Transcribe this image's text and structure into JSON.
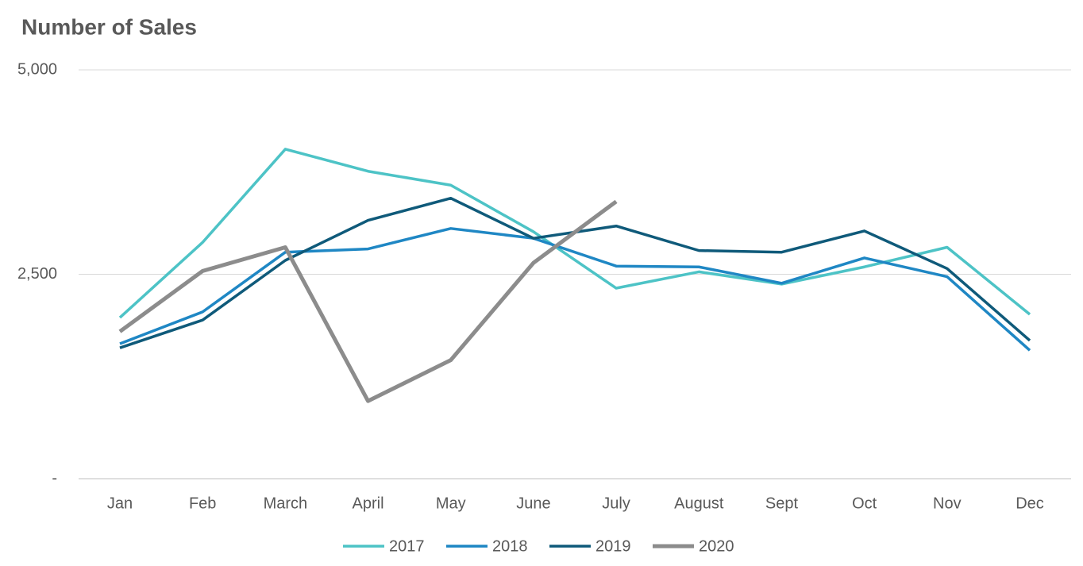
{
  "chart_data": {
    "type": "line",
    "title": "Number of Sales",
    "categories": [
      "Jan",
      "Feb",
      "March",
      "April",
      "May",
      "June",
      "July",
      "August",
      "Sept",
      "Oct",
      "Nov",
      "Dec"
    ],
    "series": [
      {
        "name": "2017",
        "color": "#4dc3c6",
        "values": [
          1970,
          2890,
          4030,
          3760,
          3590,
          3020,
          2330,
          2530,
          2380,
          2590,
          2830,
          2010
        ]
      },
      {
        "name": "2018",
        "color": "#1f87c4",
        "values": [
          1650,
          2040,
          2770,
          2810,
          3060,
          2940,
          2600,
          2590,
          2390,
          2700,
          2470,
          1570
        ]
      },
      {
        "name": "2019",
        "color": "#0f5a7a",
        "values": [
          1600,
          1940,
          2670,
          3160,
          3430,
          2940,
          3090,
          2790,
          2770,
          3030,
          2570,
          1690
        ]
      },
      {
        "name": "2020",
        "color": "#8c8c8c",
        "values": [
          1800,
          2540,
          2830,
          950,
          1450,
          2640,
          3390,
          null,
          null,
          null,
          null,
          null
        ]
      }
    ],
    "ylim": [
      0,
      5000
    ],
    "yticks": [
      {
        "value": 0,
        "label": "-"
      },
      {
        "value": 2500,
        "label": "2,500"
      },
      {
        "value": 5000,
        "label": "5,000"
      }
    ],
    "grid": true,
    "legend": "bottom"
  }
}
